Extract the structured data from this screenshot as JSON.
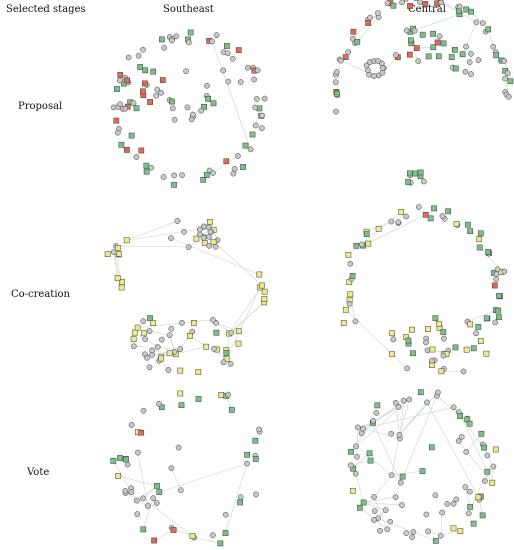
{
  "headers": {
    "stages": "Selected stages",
    "southeast": "Southeast",
    "central": "Central"
  },
  "rows": [
    {
      "label": "Proposal"
    },
    {
      "label": "Co-creation"
    },
    {
      "label": "Vote"
    }
  ],
  "colors": {
    "circle": "#c8c8c8",
    "green": "#7bbf8a",
    "red": "#e06a5a",
    "yellow": "#eeea8a",
    "stroke": "#3a3a3a"
  }
}
